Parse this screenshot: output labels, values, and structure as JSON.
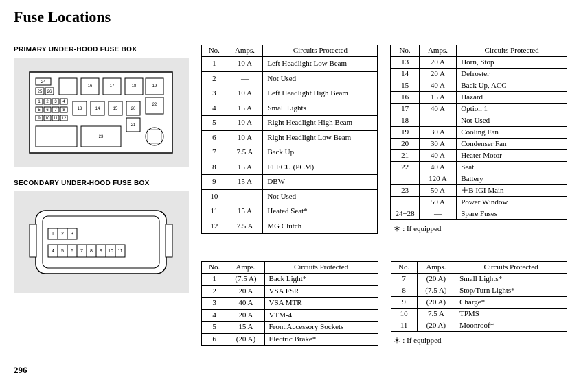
{
  "page_title": "Fuse Locations",
  "page_number": "296",
  "labels": {
    "primary": "PRIMARY UNDER-HOOD FUSE BOX",
    "secondary": "SECONDARY UNDER-HOOD FUSE BOX"
  },
  "columns": {
    "no": "No.",
    "amps": "Amps.",
    "circ": "Circuits Protected"
  },
  "footnote": "＊ :   If equipped",
  "primary_left": [
    {
      "no": "1",
      "amps": "10 A",
      "circ": "Left Headlight Low Beam"
    },
    {
      "no": "2",
      "amps": "—",
      "circ": "Not Used"
    },
    {
      "no": "3",
      "amps": "10 A",
      "circ": "Left Headlight High Beam"
    },
    {
      "no": "4",
      "amps": "15 A",
      "circ": "Small Lights"
    },
    {
      "no": "5",
      "amps": "10 A",
      "circ": "Right Headlight High Beam"
    },
    {
      "no": "6",
      "amps": "10 A",
      "circ": "Right Headlight Low Beam"
    },
    {
      "no": "7",
      "amps": "7.5 A",
      "circ": "Back Up"
    },
    {
      "no": "8",
      "amps": "15 A",
      "circ": "FI ECU (PCM)"
    },
    {
      "no": "9",
      "amps": "15 A",
      "circ": "DBW"
    },
    {
      "no": "10",
      "amps": "—",
      "circ": "Not Used"
    },
    {
      "no": "11",
      "amps": "15 A",
      "circ": "Heated Seat*"
    },
    {
      "no": "12",
      "amps": "7.5 A",
      "circ": "MG Clutch"
    }
  ],
  "primary_right": [
    {
      "no": "13",
      "amps": "20 A",
      "circ": "Horn, Stop"
    },
    {
      "no": "14",
      "amps": "20 A",
      "circ": "Defroster"
    },
    {
      "no": "15",
      "amps": "40 A",
      "circ": "Back Up, ACC"
    },
    {
      "no": "16",
      "amps": "15 A",
      "circ": "Hazard"
    },
    {
      "no": "17",
      "amps": "40 A",
      "circ": "Option 1"
    },
    {
      "no": "18",
      "amps": "—",
      "circ": "Not Used"
    },
    {
      "no": "19",
      "amps": "30 A",
      "circ": "Cooling Fan"
    },
    {
      "no": "20",
      "amps": "30 A",
      "circ": "Condenser Fan"
    },
    {
      "no": "21",
      "amps": "40 A",
      "circ": "Heater Motor"
    },
    {
      "no": "22",
      "amps": "40 A",
      "circ": "Seat"
    },
    {
      "no": "",
      "amps": "120 A",
      "circ": "Battery"
    },
    {
      "no": "23",
      "amps": "50 A",
      "circ": "＋B IGI Main"
    },
    {
      "no": "",
      "amps": "50 A",
      "circ": "Power Window"
    },
    {
      "no": "24−28",
      "amps": "—",
      "circ": "Spare Fuses"
    }
  ],
  "secondary_left": [
    {
      "no": "1",
      "amps": "(7.5 A)",
      "circ": "Back Light*"
    },
    {
      "no": "2",
      "amps": "20 A",
      "circ": "VSA FSR"
    },
    {
      "no": "3",
      "amps": "40 A",
      "circ": "VSA MTR"
    },
    {
      "no": "4",
      "amps": "20 A",
      "circ": "VTM-4"
    },
    {
      "no": "5",
      "amps": "15 A",
      "circ": "Front Accessory Sockets"
    },
    {
      "no": "6",
      "amps": "(20 A)",
      "circ": "Electric Brake*"
    }
  ],
  "secondary_right": [
    {
      "no": "7",
      "amps": "(20 A)",
      "circ": "Small Lights*"
    },
    {
      "no": "8",
      "amps": "(7.5 A)",
      "circ": "Stop/Turn Lights*"
    },
    {
      "no": "9",
      "amps": "(20 A)",
      "circ": "Charge*"
    },
    {
      "no": "10",
      "amps": "7.5 A",
      "circ": "TPMS"
    },
    {
      "no": "11",
      "amps": "(20 A)",
      "circ": "Moonroof*"
    }
  ]
}
